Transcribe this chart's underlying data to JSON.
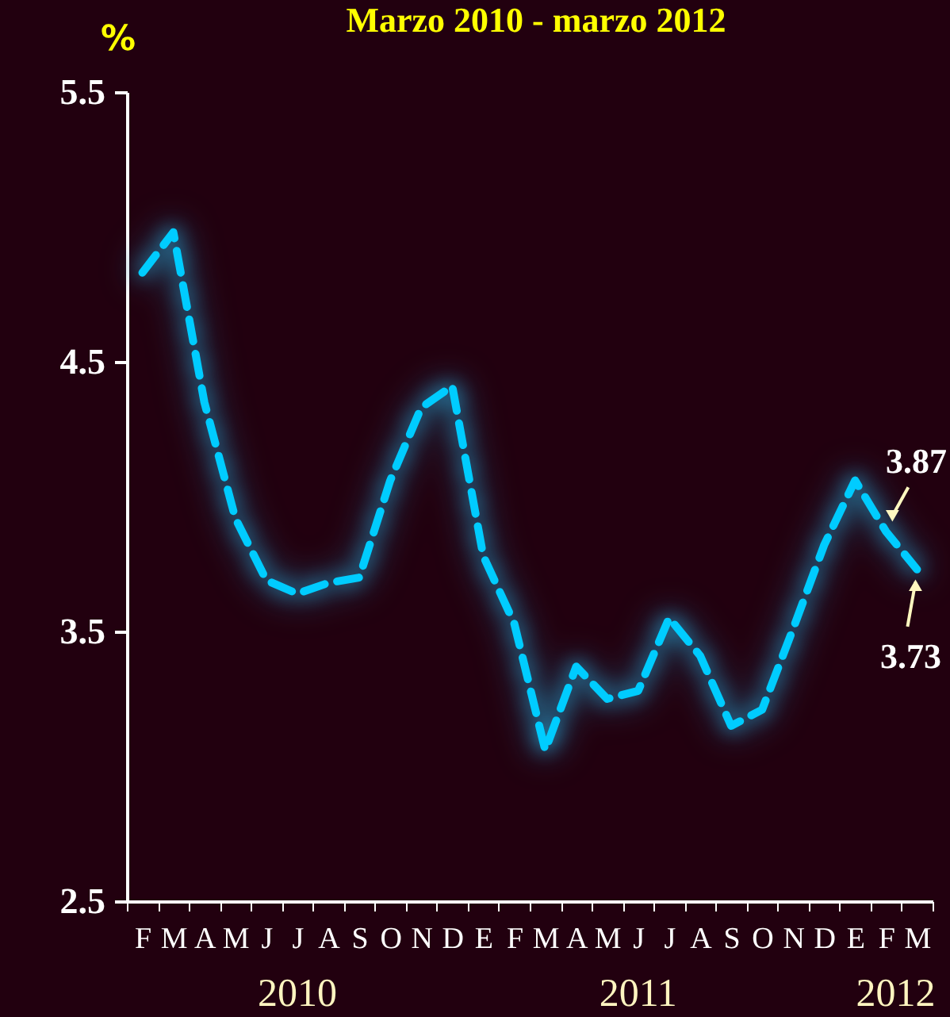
{
  "chart_data": {
    "type": "line",
    "title": "Marzo 2010 -  marzo 2012",
    "ylabel": "%",
    "categories": [
      "F",
      "M",
      "A",
      "M",
      "J",
      "J",
      "A",
      "S",
      "O",
      "N",
      "D",
      "E",
      "F",
      "M",
      "A",
      "M",
      "J",
      "J",
      "A",
      "S",
      "O",
      "N",
      "D",
      "E",
      "F",
      "M"
    ],
    "series": [
      {
        "color": "#00ccff",
        "values": [
          4.83,
          4.98,
          4.35,
          3.92,
          3.69,
          3.64,
          3.68,
          3.7,
          4.06,
          4.33,
          4.41,
          3.78,
          3.53,
          3.06,
          3.37,
          3.25,
          3.28,
          3.55,
          3.41,
          3.15,
          3.21,
          3.51,
          3.82,
          4.06,
          3.87,
          3.73
        ],
        "value_labels": [
          null,
          null,
          null,
          null,
          null,
          null,
          null,
          null,
          null,
          null,
          null,
          null,
          null,
          null,
          null,
          null,
          null,
          null,
          null,
          null,
          null,
          null,
          null,
          null,
          "3.87",
          "3.73"
        ]
      }
    ],
    "annotations": [
      "2010",
      "2011",
      "2012"
    ],
    "ylim": [
      2.5,
      5.5
    ],
    "yticks": [
      {
        "value": 2.5,
        "label": "2.5"
      },
      {
        "value": 3.5,
        "label": "3.5"
      },
      {
        "value": 4.5,
        "label": "4.5"
      },
      {
        "value": 5.5,
        "label": "5.5"
      }
    ],
    "line_style": "dashed",
    "marker": "none",
    "grid": false
  }
}
